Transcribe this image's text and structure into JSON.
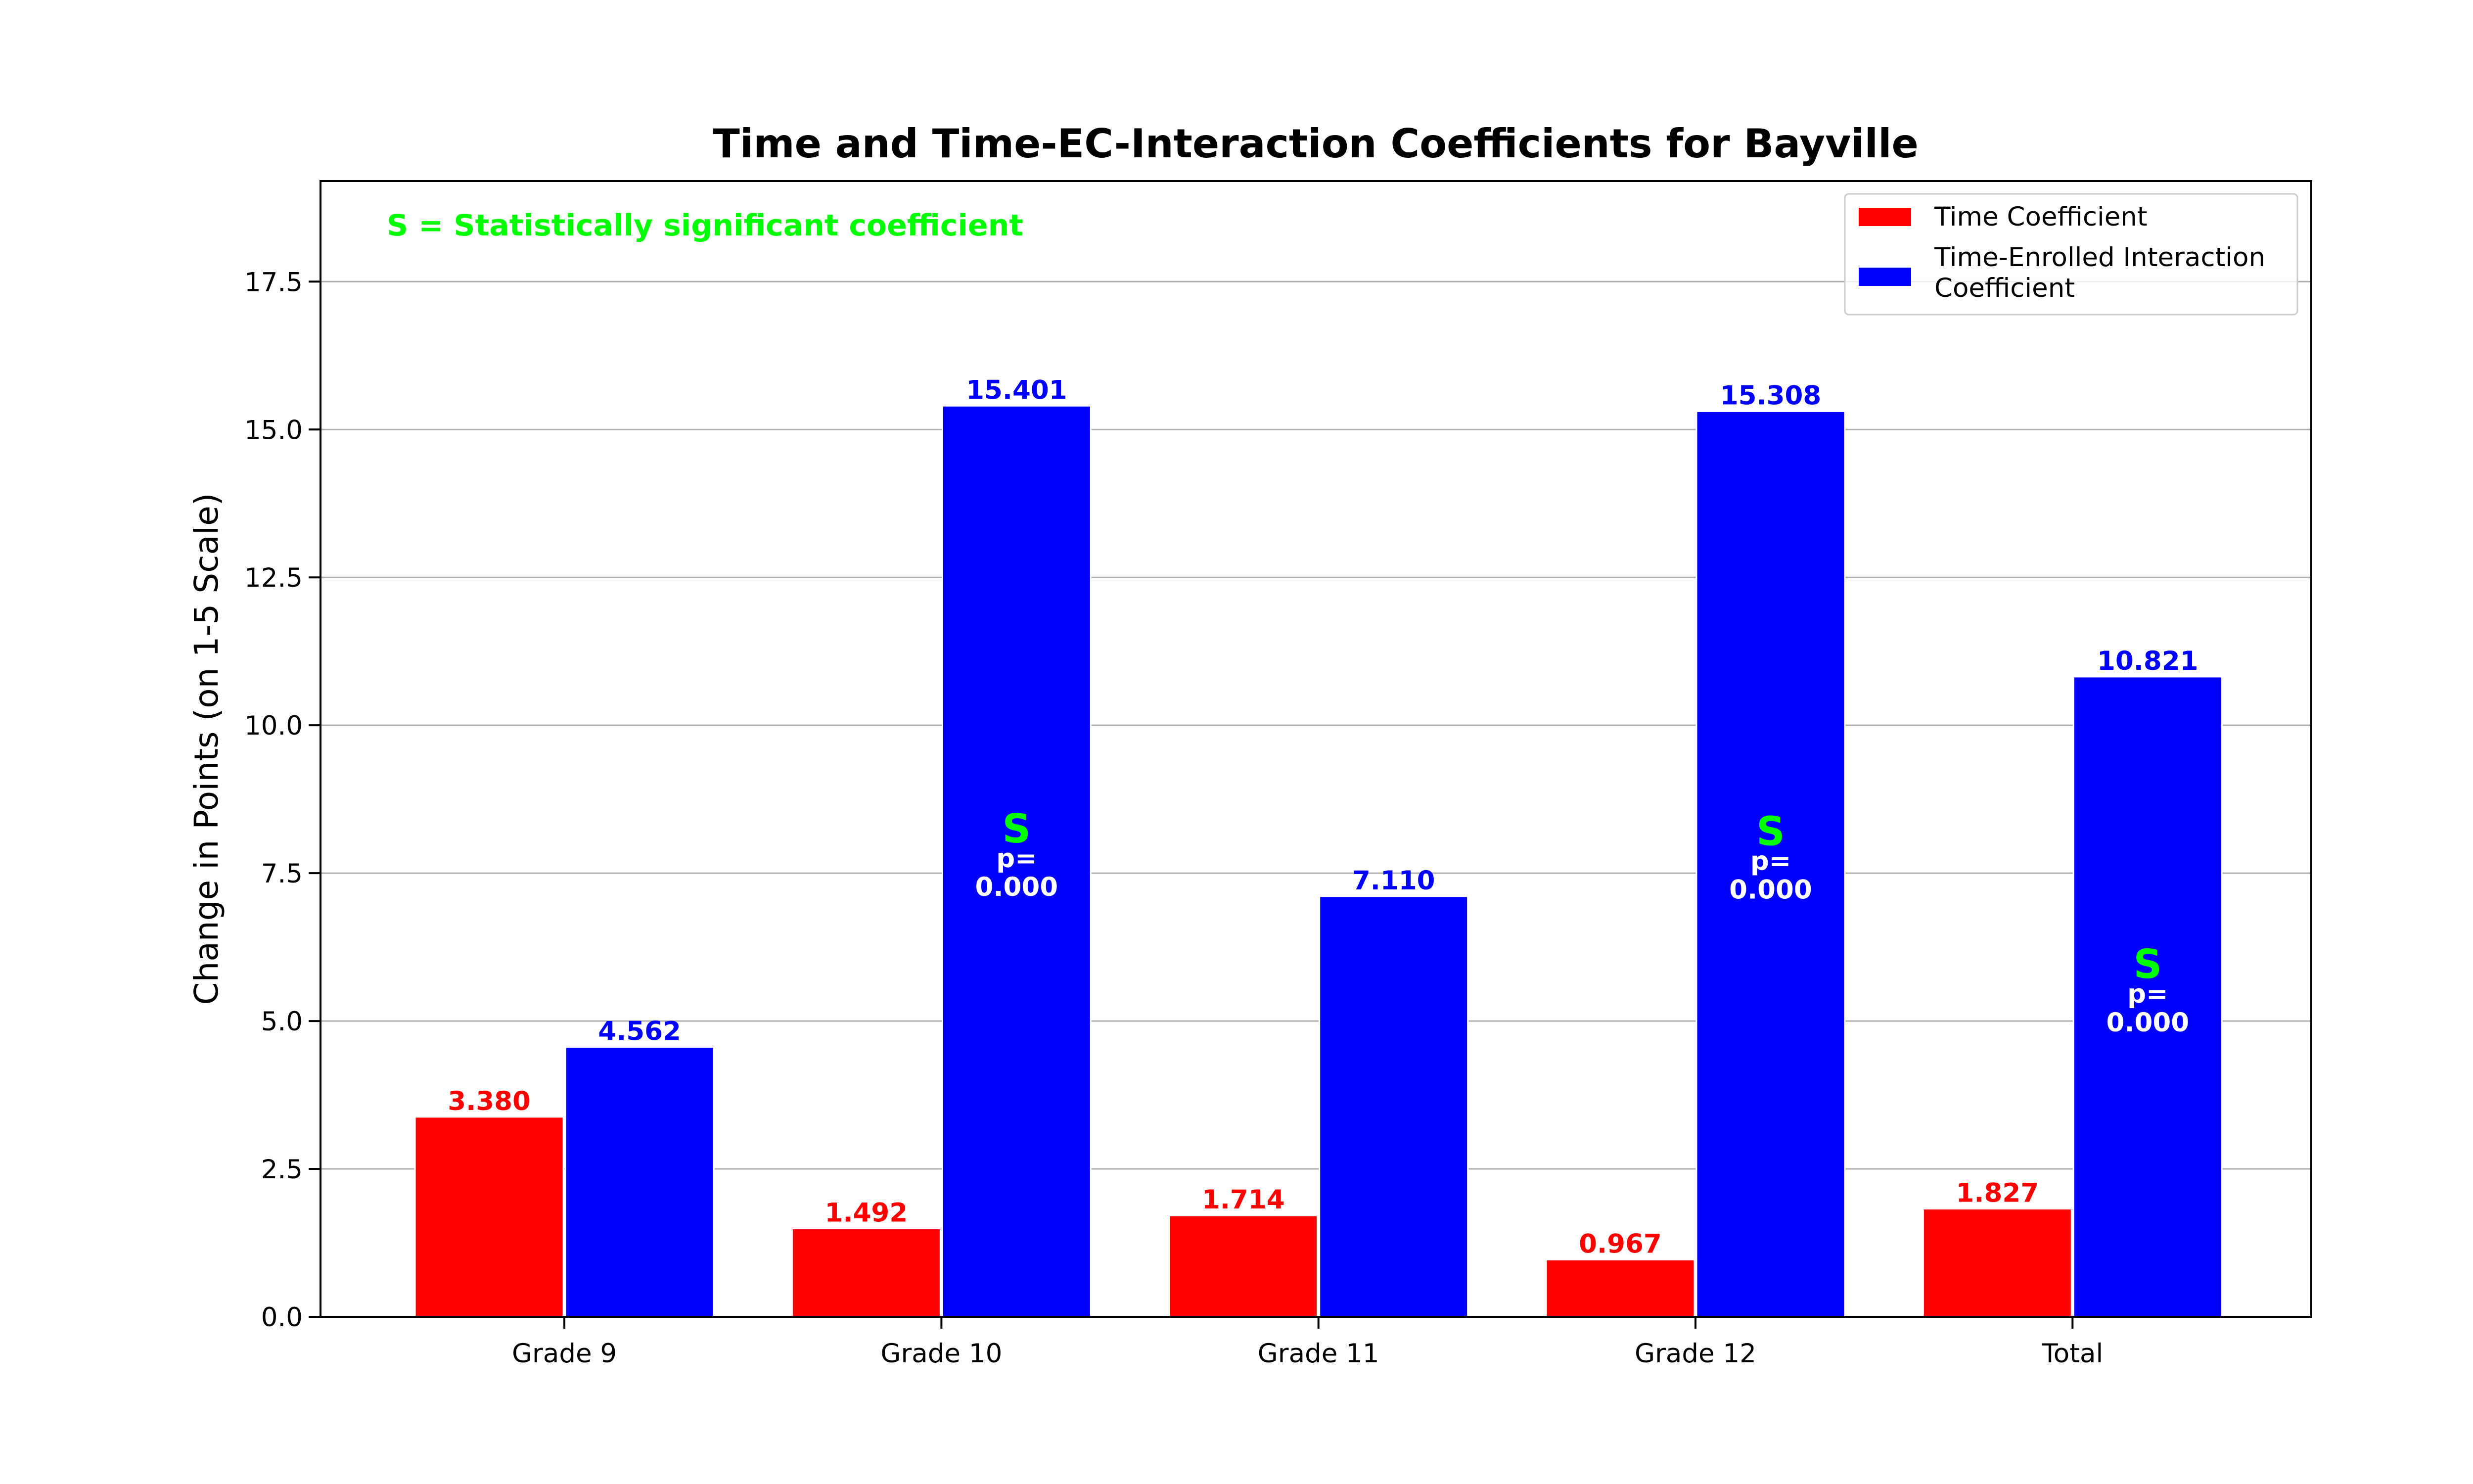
{
  "chart_data": {
    "type": "bar",
    "title": "Time and Time-EC-Interaction Coefficients for Bayville",
    "xlabel": "",
    "ylabel": "Change in Points (on 1-5 Scale)",
    "categories": [
      "Grade 9",
      "Grade 10",
      "Grade 11",
      "Grade 12",
      "Total"
    ],
    "series": [
      {
        "name": "Time Coefficient",
        "color": "#ff0000",
        "values": [
          3.38,
          1.492,
          1.714,
          0.967,
          1.827
        ],
        "labels": [
          "3.380",
          "1.492",
          "1.714",
          "0.967",
          "1.827"
        ]
      },
      {
        "name": "Time-Enrolled Interaction Coefficient",
        "legend_lines": [
          "Time-Enrolled Interaction",
          "Coefficient"
        ],
        "color": "#0000ff",
        "values": [
          4.562,
          15.401,
          7.11,
          15.308,
          10.821
        ],
        "labels": [
          "4.562",
          "15.401",
          "7.110",
          "15.308",
          "10.821"
        ]
      }
    ],
    "significance": [
      {
        "category": "Grade 10",
        "series": 1,
        "mark": "S",
        "p_label": "p=",
        "p_value": "0.000"
      },
      {
        "category": "Grade 12",
        "series": 1,
        "mark": "S",
        "p_label": "p=",
        "p_value": "0.000"
      },
      {
        "category": "Total",
        "series": 1,
        "mark": "S",
        "p_label": "p=",
        "p_value": "0.000"
      }
    ],
    "annotation": "S = Statistically significant coefficient",
    "annotation_color": "#00ff00",
    "ylim": [
      0,
      19.2
    ],
    "yticks": [
      0.0,
      2.5,
      5.0,
      7.5,
      10.0,
      12.5,
      15.0,
      17.5
    ],
    "ytick_labels": [
      "0.0",
      "2.5",
      "5.0",
      "7.5",
      "10.0",
      "12.5",
      "15.0",
      "17.5"
    ],
    "grid": "y",
    "legend_position": "top-right"
  }
}
